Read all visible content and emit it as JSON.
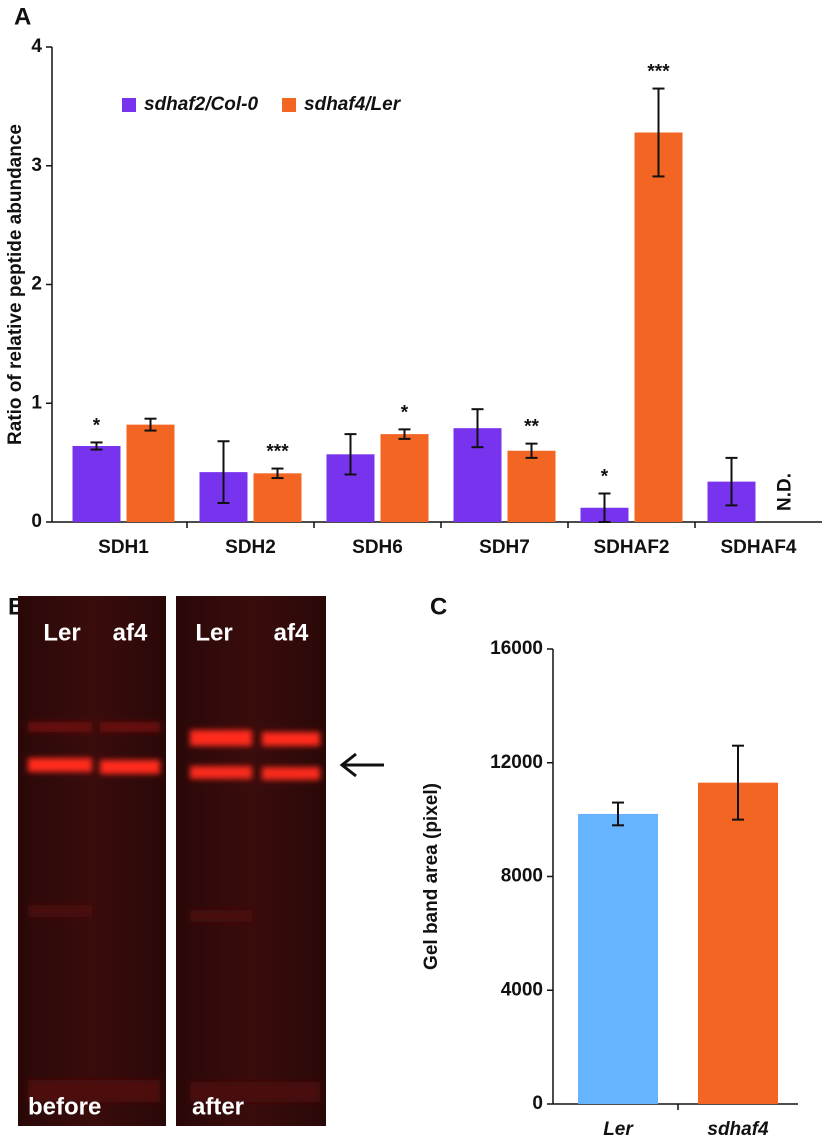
{
  "panel_labels": [
    "A",
    "B",
    "C"
  ],
  "gel": {
    "lanes_before": [
      "Ler",
      "af4"
    ],
    "lanes_after": [
      "Ler",
      "af4"
    ],
    "before": "before",
    "after": "after"
  },
  "chart_data": [
    {
      "type": "bar",
      "y_label": "Ratio of relative peptide abundance",
      "categories": [
        "SDH1",
        "SDH2",
        "SDH6",
        "SDH7",
        "SDHAF2",
        "SDHAF4"
      ],
      "series": [
        {
          "name": "sdhaf2/Col-0",
          "color": "#7733ee",
          "values": [
            0.64,
            0.42,
            0.57,
            0.79,
            0.12,
            0.34
          ],
          "errors": [
            0.03,
            0.26,
            0.17,
            0.16,
            0.12,
            0.2
          ],
          "labels": [
            "*",
            null,
            null,
            null,
            "*",
            null
          ]
        },
        {
          "name": "sdhaf4/Ler",
          "color": "#f26522",
          "values": [
            0.82,
            0.41,
            0.74,
            0.6,
            3.28,
            null
          ],
          "errors": [
            0.05,
            0.04,
            0.04,
            0.06,
            0.37,
            null
          ],
          "labels": [
            null,
            "***",
            "*",
            "**",
            "***",
            "N.D."
          ]
        }
      ],
      "ylim": [
        0,
        4
      ],
      "yticks": [
        0,
        1,
        2,
        3,
        4
      ],
      "legend": "top-left"
    },
    {
      "type": "bar",
      "y_label": "Gel band area (pixel)",
      "categories": [
        "Ler",
        "sdhaf4"
      ],
      "values": [
        10200,
        11300
      ],
      "errors": [
        400,
        1300
      ],
      "colors": [
        "#66b3ff",
        "#f26522"
      ],
      "ylim": [
        0,
        16000
      ],
      "yticks": [
        0,
        4000,
        8000,
        12000,
        16000
      ]
    }
  ]
}
